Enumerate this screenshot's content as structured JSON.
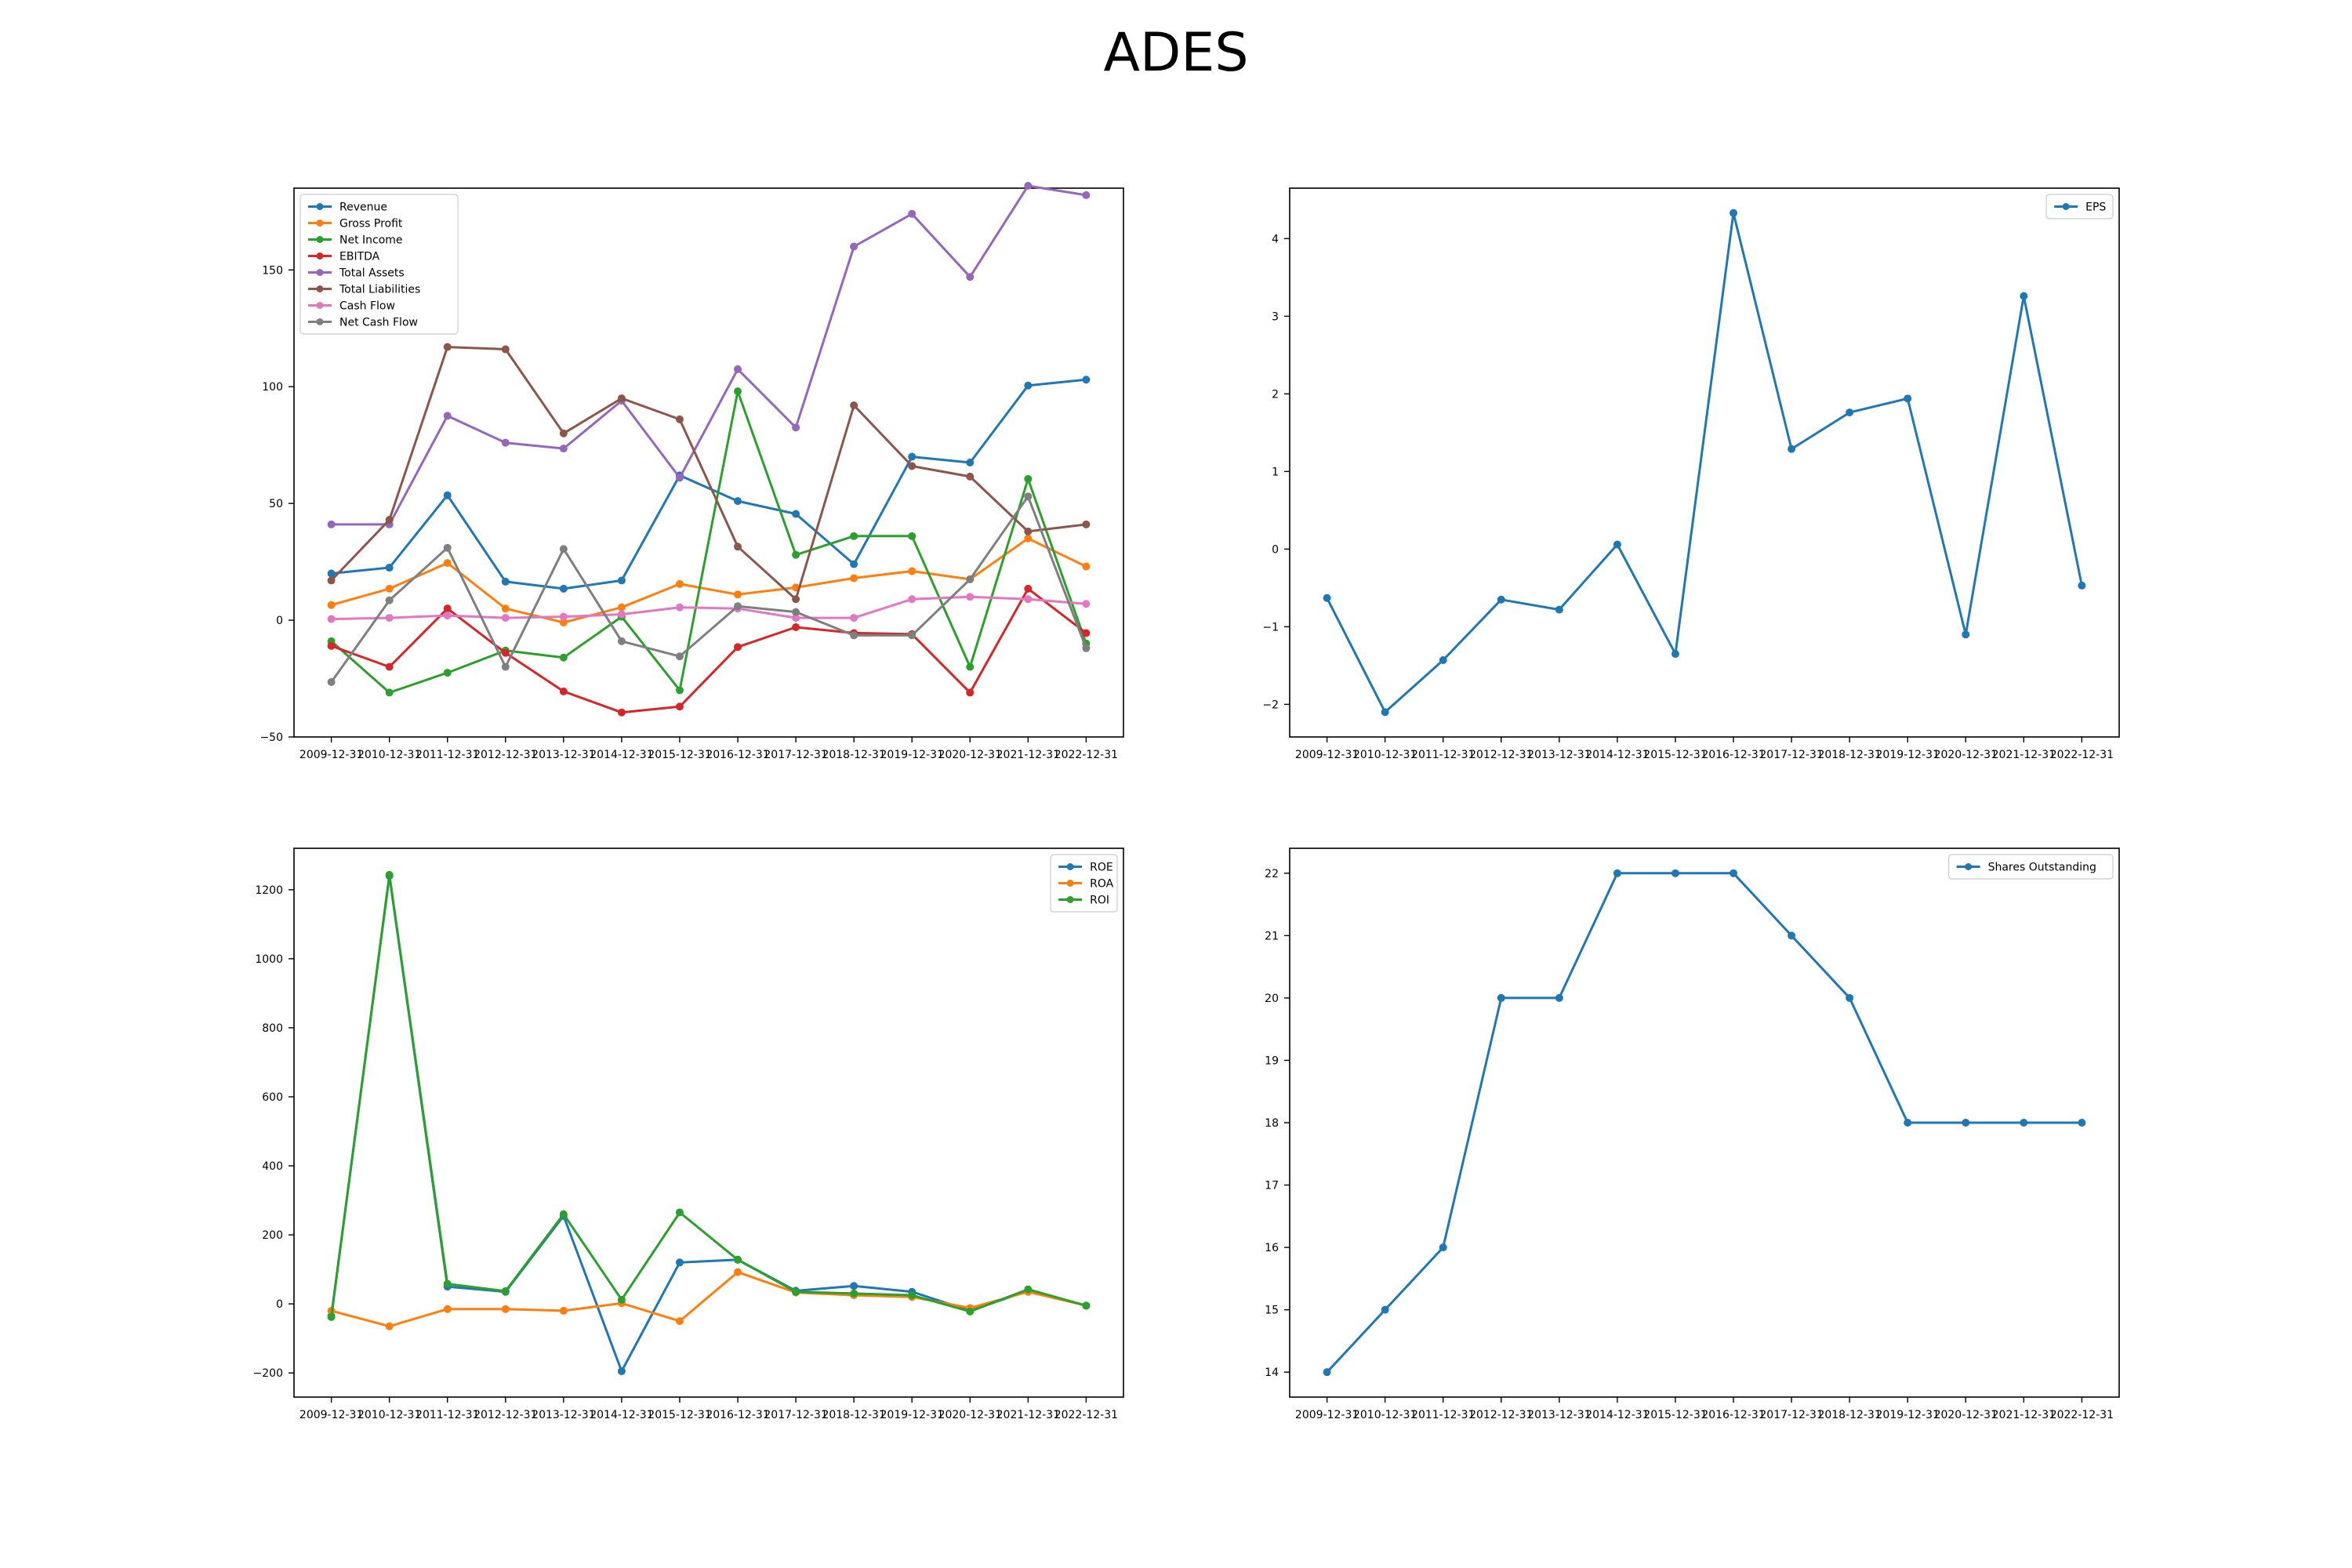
{
  "figure": {
    "title": "ADES"
  },
  "chart_data": [
    {
      "type": "line",
      "title": "",
      "xlabel": "",
      "ylabel": "",
      "x": [
        "2009-12-31",
        "2010-12-31",
        "2011-12-31",
        "2012-12-31",
        "2013-12-31",
        "2014-12-31",
        "2015-12-31",
        "2016-12-31",
        "2017-12-31",
        "2018-12-31",
        "2019-12-31",
        "2020-12-31",
        "2021-12-31",
        "2022-12-31"
      ],
      "ylim": [
        -50,
        185
      ],
      "yticks": [
        -50,
        0,
        50,
        100,
        150
      ],
      "grid": false,
      "legend": "upper left",
      "series": [
        {
          "name": "Revenue",
          "color": "#1f77b4",
          "values": [
            20,
            22.5,
            53.5,
            16.5,
            13.5,
            17,
            62,
            51,
            45.5,
            24,
            70,
            67.5,
            100.5,
            103
          ]
        },
        {
          "name": "Gross Profit",
          "color": "#ff7f0e",
          "values": [
            6.5,
            13.5,
            24.5,
            5,
            -1,
            5.5,
            15.5,
            11,
            14,
            18,
            21,
            17.5,
            35,
            23
          ]
        },
        {
          "name": "Net Income",
          "color": "#2ca02c",
          "values": [
            -9,
            -31,
            -22.5,
            -13,
            -16,
            1.5,
            -30,
            98,
            28,
            36,
            36,
            -20,
            60.5,
            -10
          ]
        },
        {
          "name": "EBITDA",
          "color": "#d62728",
          "values": [
            -11,
            -20,
            5,
            -14,
            -30.5,
            -39.5,
            -37,
            -11.5,
            -3,
            -5.5,
            -6,
            -31,
            13.5,
            -5.5
          ]
        },
        {
          "name": "Total Assets",
          "color": "#9467bd",
          "values": [
            41,
            41,
            87.5,
            76,
            73.5,
            94,
            61,
            107.5,
            82.5,
            160,
            174,
            147,
            186,
            182
          ]
        },
        {
          "name": "Total Liabilities",
          "color": "#8c564b",
          "values": [
            17,
            43,
            117,
            116,
            80,
            95,
            86,
            31.5,
            9,
            92,
            66,
            61.5,
            38,
            41
          ]
        },
        {
          "name": "Cash Flow",
          "color": "#e377c2",
          "values": [
            0.5,
            1,
            2,
            1,
            1.5,
            2.5,
            5.5,
            5,
            1,
            1,
            9,
            10,
            9,
            7
          ]
        },
        {
          "name": "Net Cash Flow",
          "color": "#7f7f7f",
          "values": [
            -26.5,
            8.5,
            31,
            -20,
            30.5,
            -9,
            -15.5,
            6,
            3.5,
            -6.5,
            -6.5,
            17.5,
            53,
            -12
          ]
        }
      ]
    },
    {
      "type": "line",
      "title": "",
      "xlabel": "",
      "ylabel": "",
      "x": [
        "2009-12-31",
        "2010-12-31",
        "2011-12-31",
        "2012-12-31",
        "2013-12-31",
        "2014-12-31",
        "2015-12-31",
        "2016-12-31",
        "2017-12-31",
        "2018-12-31",
        "2019-12-31",
        "2020-12-31",
        "2021-12-31",
        "2022-12-31"
      ],
      "ylim": [
        -2.42,
        4.65
      ],
      "yticks": [
        -2,
        -1,
        0,
        1,
        2,
        3,
        4
      ],
      "grid": false,
      "legend": "upper right",
      "series": [
        {
          "name": "EPS",
          "color": "#1f77b4",
          "values": [
            -0.63,
            -2.1,
            -1.43,
            -0.65,
            -0.78,
            0.06,
            -1.35,
            4.33,
            1.29,
            1.76,
            1.94,
            -1.1,
            3.26,
            -0.47
          ]
        }
      ]
    },
    {
      "type": "line",
      "title": "",
      "xlabel": "",
      "ylabel": "",
      "x": [
        "2009-12-31",
        "2010-12-31",
        "2011-12-31",
        "2012-12-31",
        "2013-12-31",
        "2014-12-31",
        "2015-12-31",
        "2016-12-31",
        "2017-12-31",
        "2018-12-31",
        "2019-12-31",
        "2020-12-31",
        "2021-12-31",
        "2022-12-31"
      ],
      "ylim": [
        -270,
        1320
      ],
      "yticks": [
        -200,
        0,
        200,
        400,
        600,
        800,
        1000,
        1200
      ],
      "grid": false,
      "legend": "upper right",
      "series": [
        {
          "name": "ROE",
          "color": "#1f77b4",
          "values": [
            -35,
            1240,
            50,
            35,
            255,
            -195,
            120,
            128,
            38,
            52,
            35,
            -20,
            38,
            -5
          ]
        },
        {
          "name": "ROA",
          "color": "#ff7f0e",
          "values": [
            -20,
            -65,
            -15,
            -15,
            -20,
            2,
            -50,
            92,
            33,
            25,
            20,
            -12,
            35,
            -5
          ]
        },
        {
          "name": "ROI",
          "color": "#2ca02c",
          "values": [
            -38,
            1243,
            58,
            37,
            260,
            12,
            265,
            128,
            35,
            30,
            25,
            -22,
            42,
            -5
          ]
        }
      ]
    },
    {
      "type": "line",
      "title": "",
      "xlabel": "",
      "ylabel": "",
      "x": [
        "2009-12-31",
        "2010-12-31",
        "2011-12-31",
        "2012-12-31",
        "2013-12-31",
        "2014-12-31",
        "2015-12-31",
        "2016-12-31",
        "2017-12-31",
        "2018-12-31",
        "2019-12-31",
        "2020-12-31",
        "2021-12-31",
        "2022-12-31"
      ],
      "ylim": [
        13.6,
        22.4
      ],
      "yticks": [
        14,
        15,
        16,
        17,
        18,
        19,
        20,
        21,
        22
      ],
      "grid": false,
      "legend": "upper right",
      "series": [
        {
          "name": "Shares Outstanding",
          "color": "#1f77b4",
          "values": [
            14,
            15,
            16,
            20,
            20,
            22,
            22,
            22,
            21,
            20,
            18,
            18,
            18,
            18
          ]
        }
      ]
    }
  ]
}
